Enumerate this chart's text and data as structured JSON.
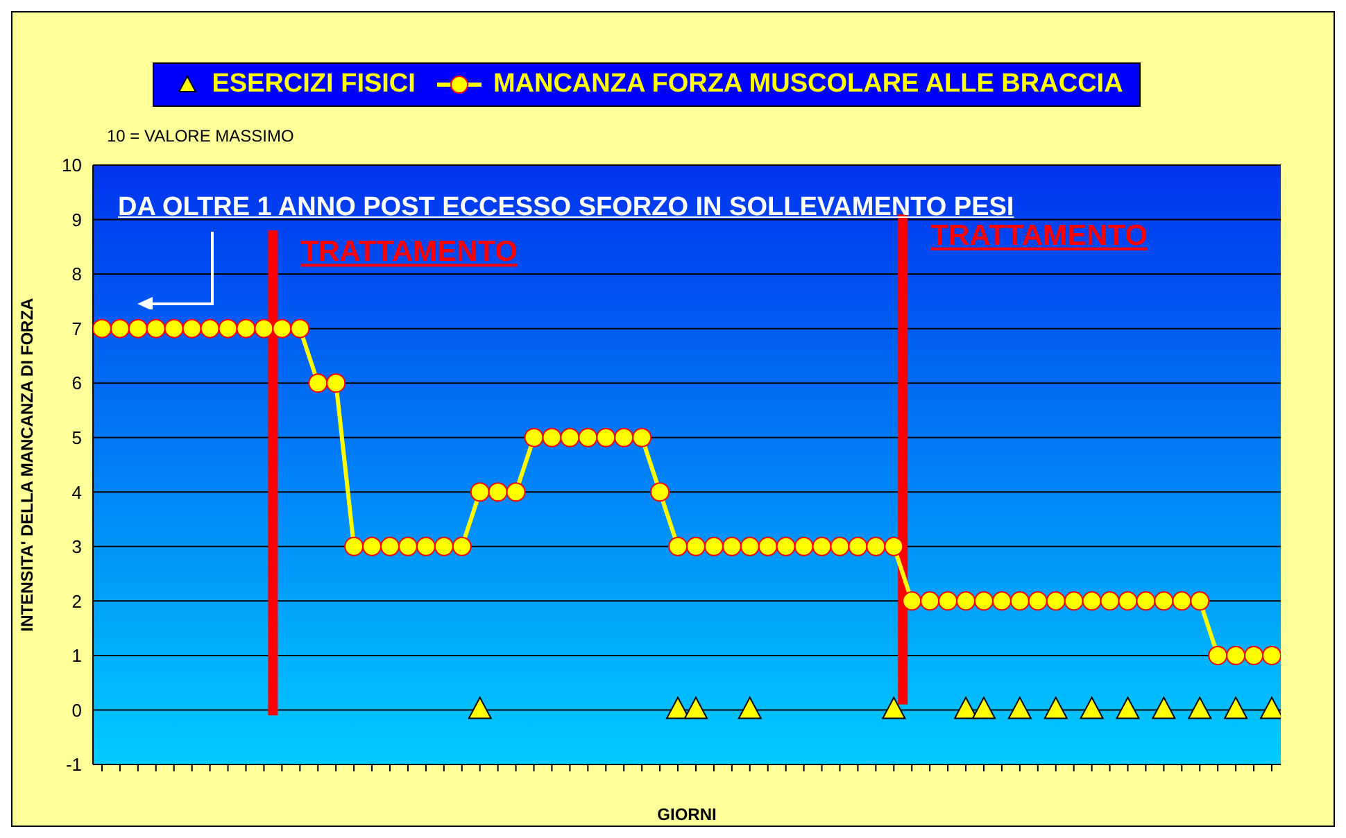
{
  "chart_data": {
    "type": "line",
    "xlabel": "GIORNI",
    "ylabel": "INTENSITA' DELLA MANCANZA DI FORZA",
    "annotations": [
      "10 = VALORE MASSIMO",
      "DA OLTRE 1 ANNO POST ECCESSO SFORZO IN SOLLEVAMENTO PESI",
      "TRATTAMENTO",
      "TRATTAMENTO"
    ],
    "categories": [
      null,
      null,
      null,
      null,
      null,
      null,
      null,
      null,
      null,
      null,
      null,
      null,
      null,
      null,
      null,
      null,
      null,
      null,
      null,
      null,
      null,
      null,
      null,
      null,
      null,
      null,
      null,
      null,
      null,
      null,
      null,
      null,
      null,
      null,
      null,
      null,
      null,
      null,
      null,
      null,
      null,
      null,
      null,
      null,
      null,
      null,
      null,
      null,
      null,
      null,
      null,
      null,
      null,
      null,
      null,
      null,
      null,
      null,
      null,
      null,
      null,
      null,
      null,
      null,
      null,
      null
    ],
    "series": [
      {
        "name": "ESERCIZI FISICI",
        "type": "scatter",
        "marker": "triangle",
        "color": "#ffff00",
        "values": [
          null,
          null,
          null,
          null,
          null,
          null,
          null,
          null,
          null,
          null,
          null,
          null,
          null,
          null,
          null,
          null,
          null,
          null,
          null,
          null,
          null,
          0,
          null,
          null,
          null,
          null,
          null,
          null,
          null,
          null,
          null,
          null,
          0,
          0,
          null,
          null,
          0,
          null,
          null,
          null,
          null,
          null,
          null,
          null,
          0,
          null,
          null,
          null,
          0,
          0,
          null,
          0,
          null,
          0,
          null,
          0,
          null,
          0,
          null,
          0,
          null,
          0,
          null,
          0,
          null,
          0
        ]
      },
      {
        "name": "MANCANZA FORZA MUSCOLARE ALLE BRACCIA",
        "marker": "circle",
        "color": "#ffff00",
        "values": [
          7,
          7,
          7,
          7,
          7,
          7,
          7,
          7,
          7,
          7,
          7,
          7,
          6,
          6,
          3,
          3,
          3,
          3,
          3,
          3,
          3,
          4,
          4,
          4,
          5,
          5,
          5,
          5,
          5,
          5,
          5,
          4,
          3,
          3,
          3,
          3,
          3,
          3,
          3,
          3,
          3,
          3,
          3,
          3,
          3,
          2,
          2,
          2,
          2,
          2,
          2,
          2,
          2,
          2,
          2,
          2,
          2,
          2,
          2,
          2,
          2,
          2,
          1,
          1,
          1,
          1
        ]
      }
    ],
    "ylim": [
      -1,
      10
    ],
    "yticks": [
      -1,
      0,
      1,
      2,
      3,
      4,
      5,
      6,
      7,
      8,
      9,
      10
    ],
    "grid": "y",
    "legend": "top",
    "tick_labels": "y"
  }
}
